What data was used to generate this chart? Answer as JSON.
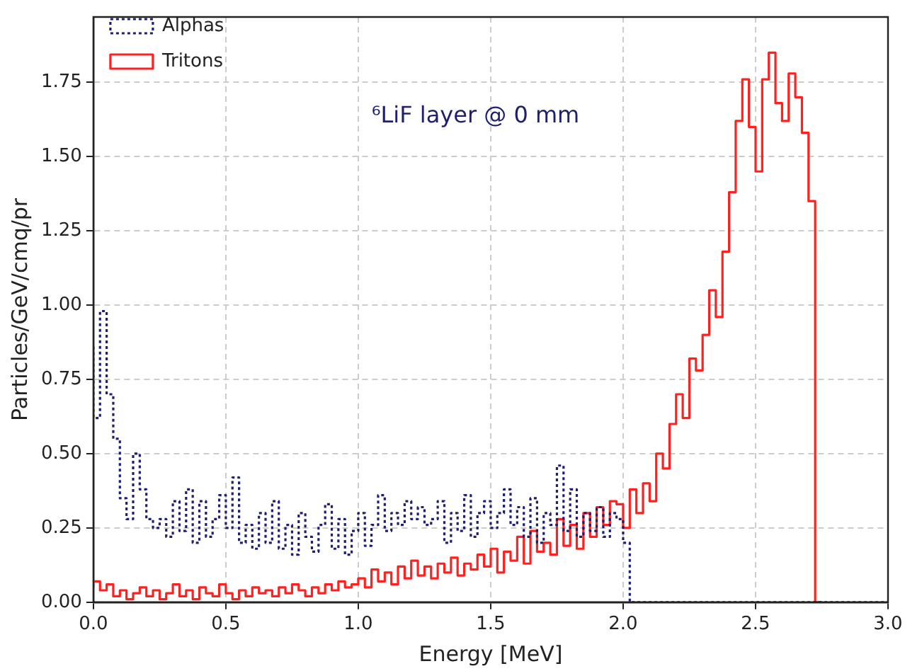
{
  "chart_data": {
    "type": "step",
    "xlabel": "Energy [MeV]",
    "ylabel": "Particles/GeV/cmq/pr",
    "annotations": [
      "⁶LiF layer @ 0 mm"
    ],
    "x": [
      0,
      0.025,
      0.05,
      0.075,
      0.1,
      0.125,
      0.15,
      0.175,
      0.2,
      0.225,
      0.25,
      0.275,
      0.3,
      0.325,
      0.35,
      0.375,
      0.4,
      0.425,
      0.45,
      0.475,
      0.5,
      0.525,
      0.55,
      0.575,
      0.6,
      0.625,
      0.65,
      0.675,
      0.7,
      0.725,
      0.75,
      0.775,
      0.8,
      0.825,
      0.85,
      0.875,
      0.9,
      0.925,
      0.95,
      0.975,
      1.0,
      1.025,
      1.05,
      1.075,
      1.1,
      1.125,
      1.15,
      1.175,
      1.2,
      1.225,
      1.25,
      1.275,
      1.3,
      1.325,
      1.35,
      1.375,
      1.4,
      1.425,
      1.45,
      1.475,
      1.5,
      1.525,
      1.55,
      1.575,
      1.6,
      1.625,
      1.65,
      1.675,
      1.7,
      1.725,
      1.75,
      1.775,
      1.8,
      1.825,
      1.85,
      1.875,
      1.9,
      1.925,
      1.95,
      1.975,
      2.0,
      2.025,
      2.05,
      2.075,
      2.1,
      2.125,
      2.15,
      2.175,
      2.2,
      2.225,
      2.25,
      2.275,
      2.3,
      2.325,
      2.35,
      2.375,
      2.4,
      2.425,
      2.45,
      2.475,
      2.5,
      2.525,
      2.55,
      2.575,
      2.6,
      2.625,
      2.65,
      2.675,
      2.7,
      2.725,
      2.75,
      2.775,
      2.8,
      2.825,
      2.85,
      2.875,
      2.9,
      2.925,
      2.95,
      2.975,
      3.0
    ],
    "series": [
      {
        "name": "Alphas",
        "color": "#1f1f6e",
        "line_style": "dotted",
        "values": [
          0.86,
          0.62,
          0.98,
          0.7,
          0.55,
          0.35,
          0.28,
          0.5,
          0.38,
          0.28,
          0.25,
          0.28,
          0.22,
          0.34,
          0.24,
          0.38,
          0.2,
          0.34,
          0.22,
          0.28,
          0.36,
          0.25,
          0.42,
          0.2,
          0.26,
          0.18,
          0.3,
          0.2,
          0.34,
          0.18,
          0.26,
          0.16,
          0.3,
          0.22,
          0.17,
          0.26,
          0.33,
          0.18,
          0.28,
          0.16,
          0.24,
          0.3,
          0.19,
          0.26,
          0.36,
          0.24,
          0.3,
          0.26,
          0.34,
          0.28,
          0.32,
          0.26,
          0.28,
          0.34,
          0.2,
          0.3,
          0.24,
          0.36,
          0.22,
          0.3,
          0.34,
          0.25,
          0.3,
          0.38,
          0.26,
          0.32,
          0.22,
          0.35,
          0.2,
          0.3,
          0.26,
          0.46,
          0.24,
          0.38,
          0.22,
          0.3,
          0.24,
          0.32,
          0.22,
          0.3,
          0.28,
          0.2,
          0,
          0,
          0,
          0,
          0,
          0,
          0,
          0,
          0,
          0,
          0,
          0,
          0,
          0,
          0,
          0,
          0,
          0,
          0,
          0,
          0,
          0,
          0,
          0,
          0,
          0,
          0,
          0,
          0,
          0,
          0,
          0,
          0,
          0,
          0,
          0,
          0,
          0,
          0
        ]
      },
      {
        "name": "Tritons",
        "color": "#ff2020",
        "line_style": "solid",
        "values": [
          0.05,
          0.07,
          0.04,
          0.06,
          0.02,
          0.04,
          0.01,
          0.03,
          0.05,
          0.02,
          0.04,
          0.01,
          0.03,
          0.06,
          0.02,
          0.04,
          0.01,
          0.05,
          0.03,
          0.02,
          0.06,
          0.03,
          0.01,
          0.04,
          0.02,
          0.05,
          0.03,
          0.04,
          0.02,
          0.05,
          0.03,
          0.06,
          0.04,
          0.02,
          0.05,
          0.03,
          0.06,
          0.04,
          0.07,
          0.05,
          0.06,
          0.08,
          0.05,
          0.11,
          0.07,
          0.1,
          0.06,
          0.12,
          0.08,
          0.14,
          0.09,
          0.12,
          0.08,
          0.13,
          0.1,
          0.15,
          0.09,
          0.13,
          0.11,
          0.16,
          0.12,
          0.18,
          0.1,
          0.17,
          0.14,
          0.22,
          0.13,
          0.24,
          0.17,
          0.2,
          0.16,
          0.28,
          0.19,
          0.26,
          0.18,
          0.3,
          0.22,
          0.32,
          0.26,
          0.34,
          0.33,
          0.25,
          0.38,
          0.3,
          0.4,
          0.34,
          0.5,
          0.45,
          0.6,
          0.7,
          0.62,
          0.82,
          0.78,
          0.9,
          1.05,
          0.96,
          1.18,
          1.38,
          1.62,
          1.76,
          1.6,
          1.45,
          1.76,
          1.85,
          1.68,
          1.62,
          1.78,
          1.7,
          1.58,
          1.35,
          0,
          null,
          null,
          null,
          null,
          null,
          null,
          null,
          null,
          null,
          null
        ]
      }
    ],
    "xlim": [
      0,
      3
    ],
    "ylim": [
      0,
      1.97
    ],
    "xticks": [
      {
        "value": 0,
        "label": "0.0"
      },
      {
        "value": 0.5,
        "label": "0.5"
      },
      {
        "value": 1,
        "label": "1.0"
      },
      {
        "value": 1.5,
        "label": "1.5"
      },
      {
        "value": 2,
        "label": "2.0"
      },
      {
        "value": 2.5,
        "label": "2.5"
      },
      {
        "value": 3,
        "label": "3.0"
      }
    ],
    "yticks": [
      {
        "value": 0,
        "label": "0.00"
      },
      {
        "value": 0.25,
        "label": "0.25"
      },
      {
        "value": 0.5,
        "label": "0.50"
      },
      {
        "value": 0.75,
        "label": "0.75"
      },
      {
        "value": 1,
        "label": "1.00"
      },
      {
        "value": 1.25,
        "label": "1.25"
      },
      {
        "value": 1.5,
        "label": "1.50"
      },
      {
        "value": 1.75,
        "label": "1.75"
      }
    ],
    "grid": true,
    "legend": "top left"
  }
}
